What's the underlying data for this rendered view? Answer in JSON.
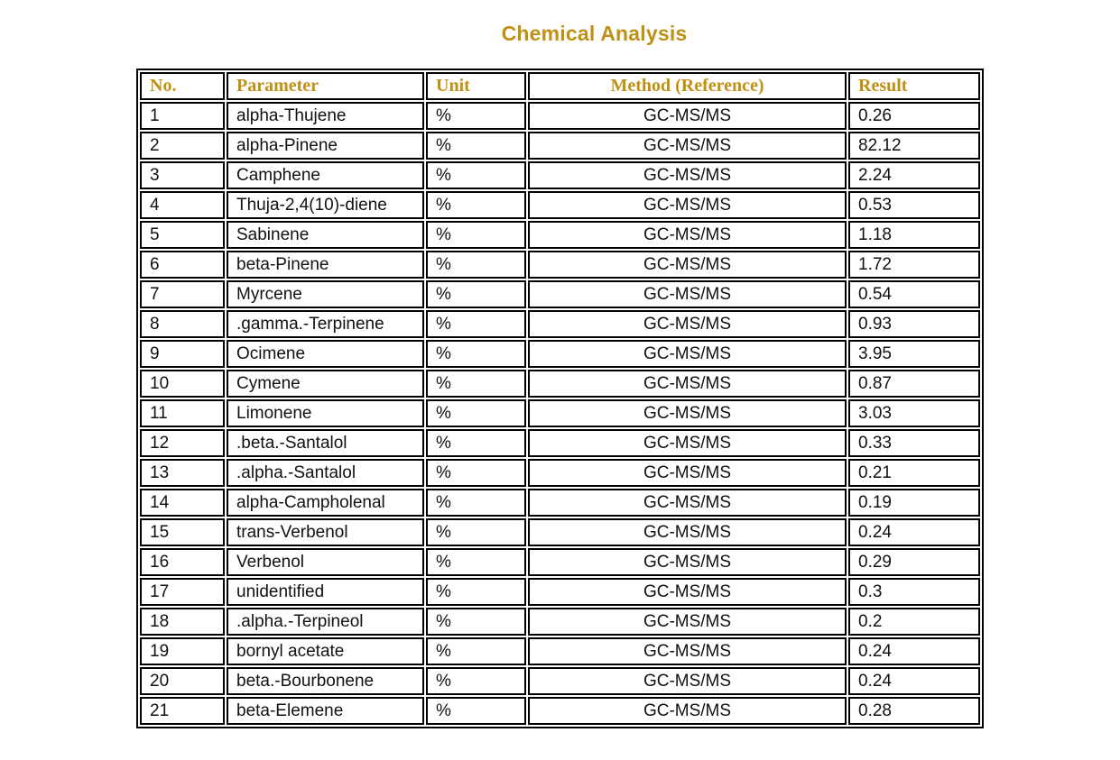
{
  "title": "Chemical Analysis",
  "colors": {
    "accent_gold": "#BF9014",
    "border": "#000000",
    "body_text": "#111111",
    "background": "#FFFFFF"
  },
  "table": {
    "headers": [
      "No.",
      "Parameter",
      "Unit",
      "Method (Reference)",
      "Result"
    ],
    "rows": [
      {
        "no": "1",
        "parameter": "alpha-Thujene",
        "unit": "%",
        "method": "GC-MS/MS",
        "result": "0.26"
      },
      {
        "no": "2",
        "parameter": "alpha-Pinene",
        "unit": "%",
        "method": "GC-MS/MS",
        "result": "82.12"
      },
      {
        "no": "3",
        "parameter": "Camphene",
        "unit": "%",
        "method": "GC-MS/MS",
        "result": "2.24"
      },
      {
        "no": "4",
        "parameter": "Thuja-2,4(10)-diene",
        "unit": "%",
        "method": "GC-MS/MS",
        "result": "0.53"
      },
      {
        "no": "5",
        "parameter": "Sabinene",
        "unit": "%",
        "method": "GC-MS/MS",
        "result": "1.18"
      },
      {
        "no": "6",
        "parameter": "beta-Pinene",
        "unit": "%",
        "method": "GC-MS/MS",
        "result": "1.72"
      },
      {
        "no": "7",
        "parameter": "Myrcene",
        "unit": "%",
        "method": "GC-MS/MS",
        "result": "0.54"
      },
      {
        "no": "8",
        "parameter": ".gamma.-Terpinene",
        "unit": "%",
        "method": "GC-MS/MS",
        "result": "0.93"
      },
      {
        "no": "9",
        "parameter": "Ocimene",
        "unit": "%",
        "method": "GC-MS/MS",
        "result": "3.95"
      },
      {
        "no": "10",
        "parameter": "Cymene",
        "unit": "%",
        "method": "GC-MS/MS",
        "result": "0.87"
      },
      {
        "no": "11",
        "parameter": "Limonene",
        "unit": "%",
        "method": "GC-MS/MS",
        "result": "3.03"
      },
      {
        "no": "12",
        "parameter": ".beta.-Santalol",
        "unit": "%",
        "method": "GC-MS/MS",
        "result": "0.33"
      },
      {
        "no": "13",
        "parameter": ".alpha.-Santalol",
        "unit": "%",
        "method": "GC-MS/MS",
        "result": "0.21"
      },
      {
        "no": "14",
        "parameter": "alpha-Campholenal",
        "unit": "%",
        "method": "GC-MS/MS",
        "result": "0.19"
      },
      {
        "no": "15",
        "parameter": "trans-Verbenol",
        "unit": "%",
        "method": "GC-MS/MS",
        "result": "0.24"
      },
      {
        "no": "16",
        "parameter": "Verbenol",
        "unit": "%",
        "method": "GC-MS/MS",
        "result": "0.29"
      },
      {
        "no": "17",
        "parameter": "unidentified",
        "unit": "%",
        "method": "GC-MS/MS",
        "result": "0.3"
      },
      {
        "no": "18",
        "parameter": ".alpha.-Terpineol",
        "unit": "%",
        "method": "GC-MS/MS",
        "result": "0.2"
      },
      {
        "no": "19",
        "parameter": "bornyl acetate",
        "unit": "%",
        "method": "GC-MS/MS",
        "result": "0.24"
      },
      {
        "no": "20",
        "parameter": "beta.-Bourbonene",
        "unit": "%",
        "method": "GC-MS/MS",
        "result": "0.24"
      },
      {
        "no": "21",
        "parameter": "beta-Elemene",
        "unit": "%",
        "method": "GC-MS/MS",
        "result": "0.28"
      }
    ]
  }
}
